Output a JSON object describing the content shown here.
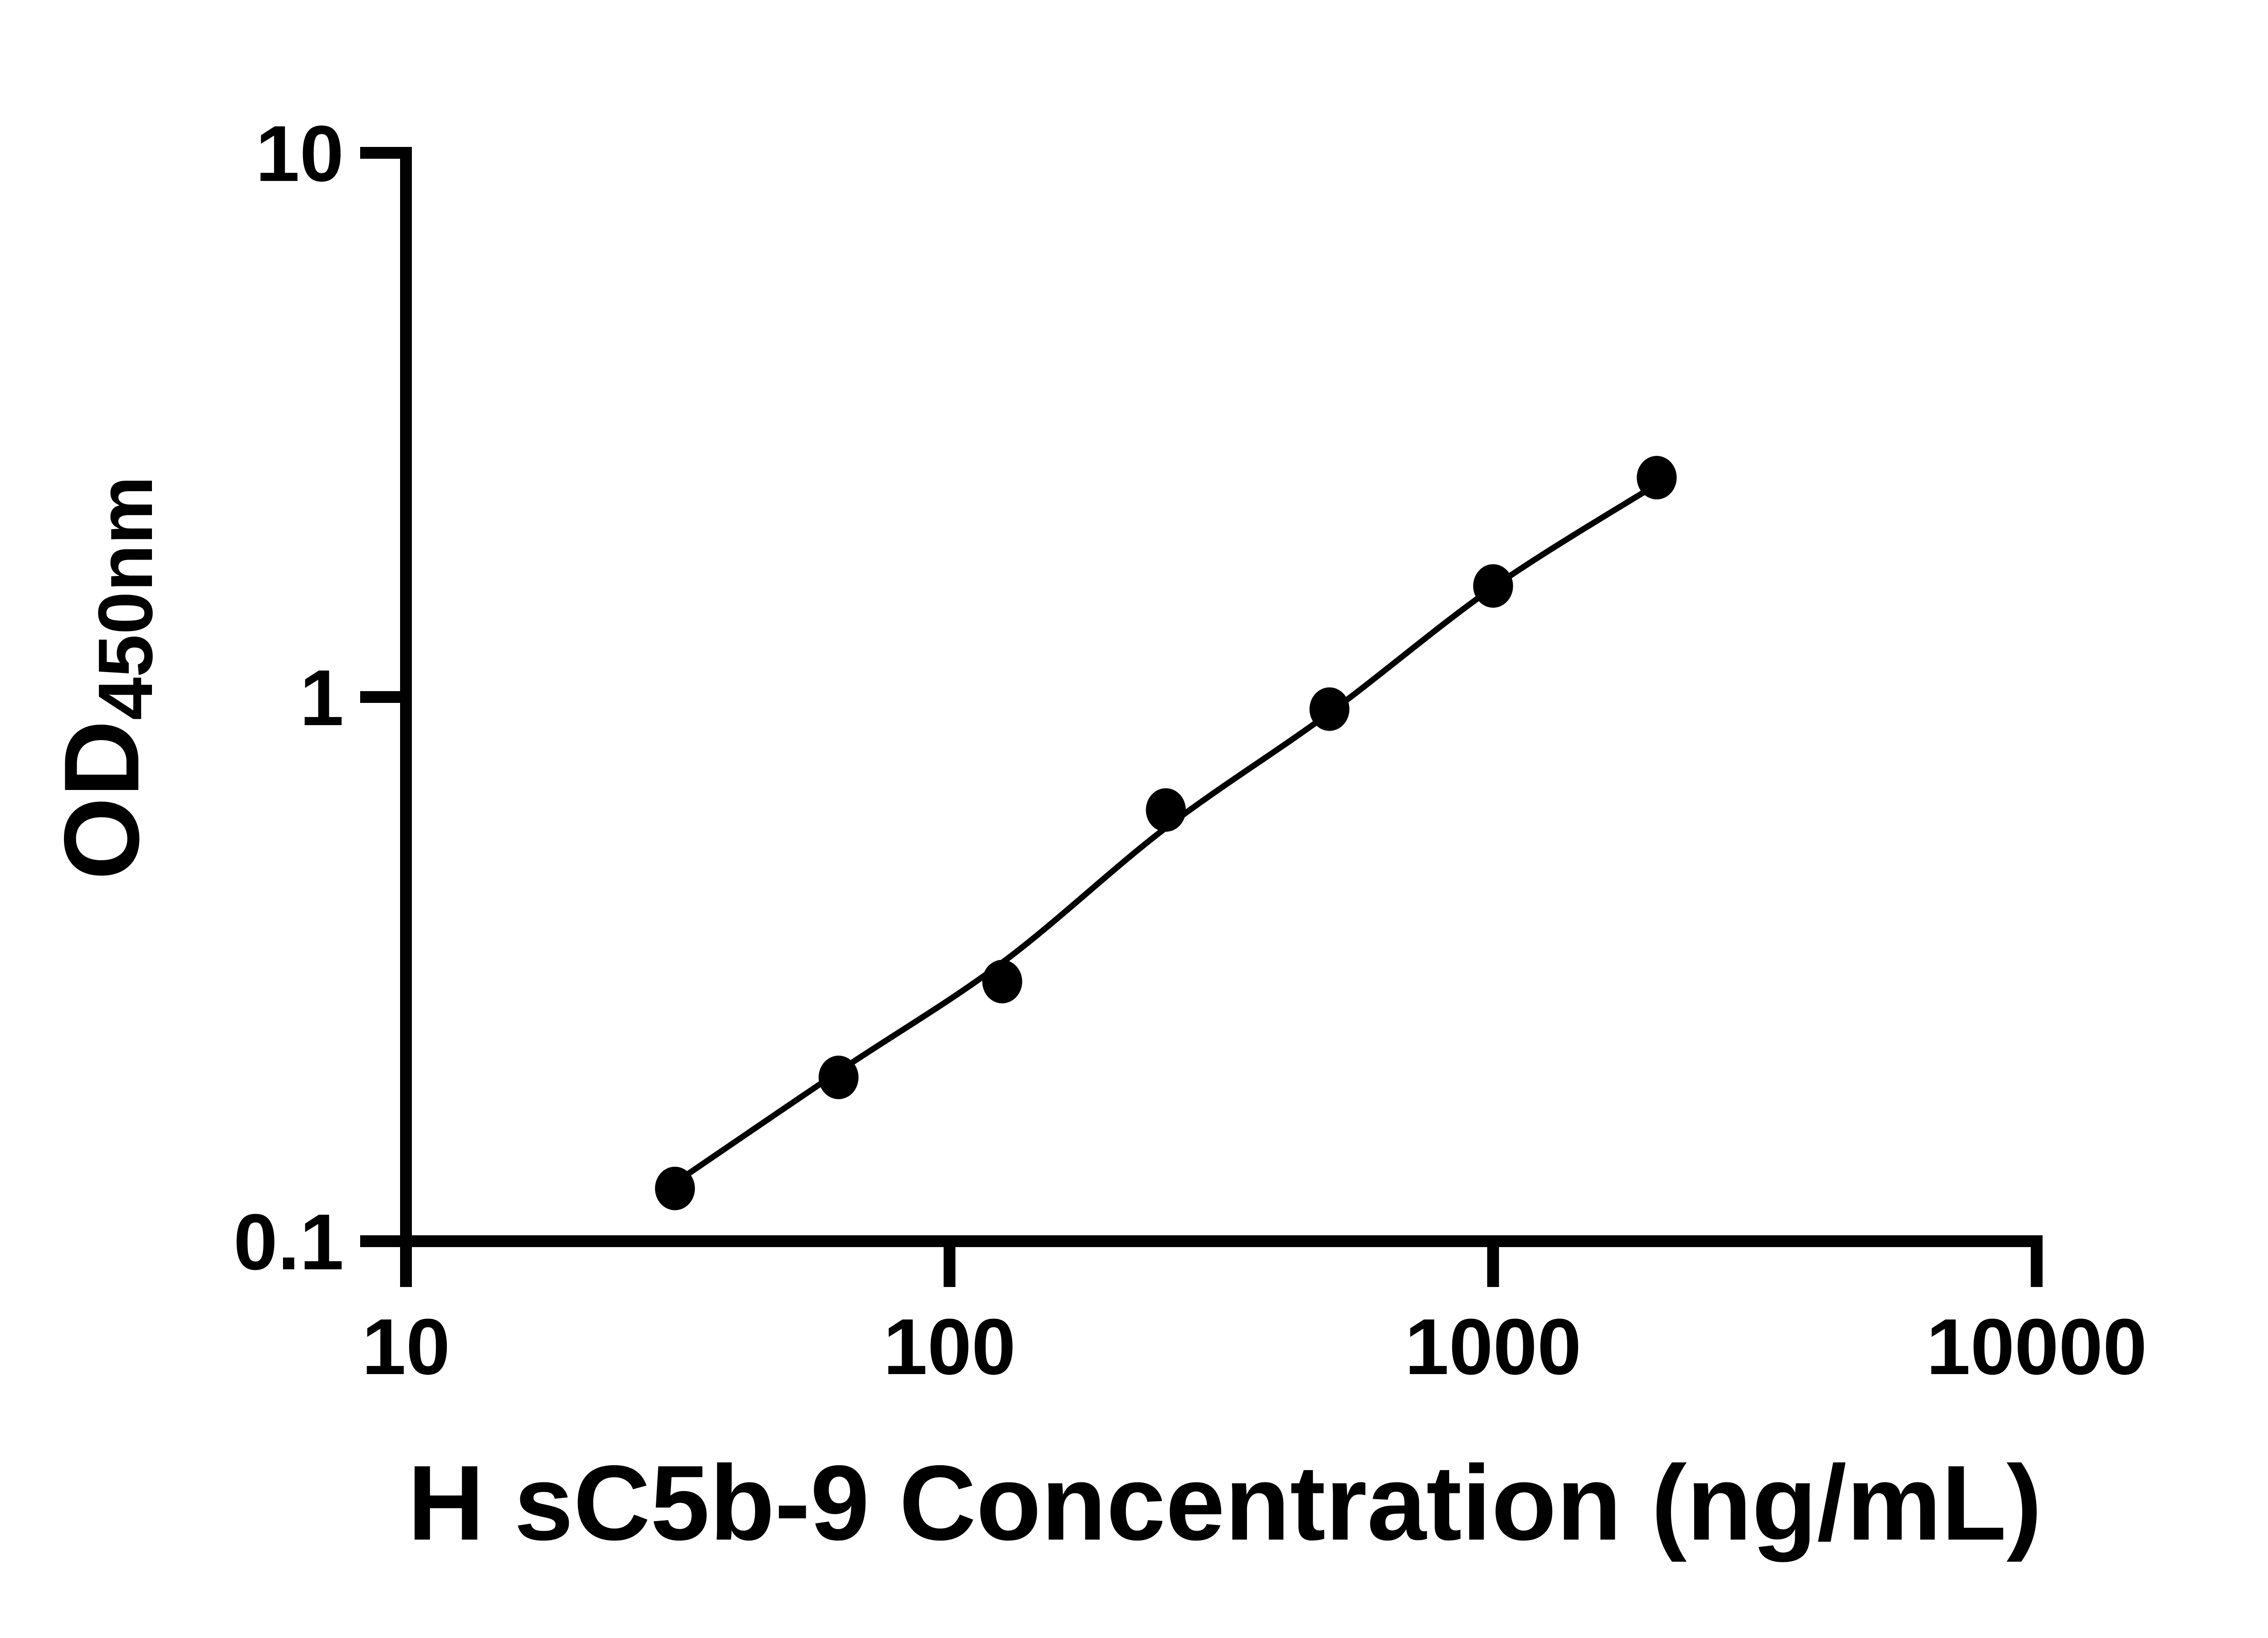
{
  "figure": {
    "background_color": "#ffffff",
    "ink_color": "#000000"
  },
  "chart_data": {
    "type": "scatter",
    "subtype": "standard-curve-with-fitted-line",
    "title": "",
    "xlabel": "H sC5b-9 Concentration (ng/mL)",
    "ylabel_main": "OD",
    "ylabel_sub": "450nm",
    "x_scale": "log10",
    "y_scale": "log10",
    "xlim": [
      10,
      10000
    ],
    "ylim": [
      0.1,
      10
    ],
    "grid": false,
    "legend": false,
    "x_ticks": [
      {
        "value": 10,
        "label": "10"
      },
      {
        "value": 100,
        "label": "100"
      },
      {
        "value": 1000,
        "label": "1000"
      },
      {
        "value": 10000,
        "label": "10000"
      }
    ],
    "y_ticks": [
      {
        "value": 0.1,
        "label": "0.1"
      },
      {
        "value": 1,
        "label": "1"
      },
      {
        "value": 10,
        "label": "10"
      }
    ],
    "series": [
      {
        "name": "standard-points",
        "type": "scatter",
        "marker": "filled-circle",
        "color": "#000000",
        "x": [
          31.25,
          62.5,
          125,
          250,
          500,
          1000,
          2000
        ],
        "y": [
          0.125,
          0.2,
          0.3,
          0.62,
          0.95,
          1.6,
          2.53
        ]
      },
      {
        "name": "fitted-curve",
        "type": "line",
        "color": "#000000",
        "x": [
          31.25,
          62.5,
          125,
          250,
          500,
          1000,
          2000
        ],
        "y": [
          0.128,
          0.205,
          0.325,
          0.575,
          0.935,
          1.59,
          2.46
        ]
      }
    ]
  }
}
